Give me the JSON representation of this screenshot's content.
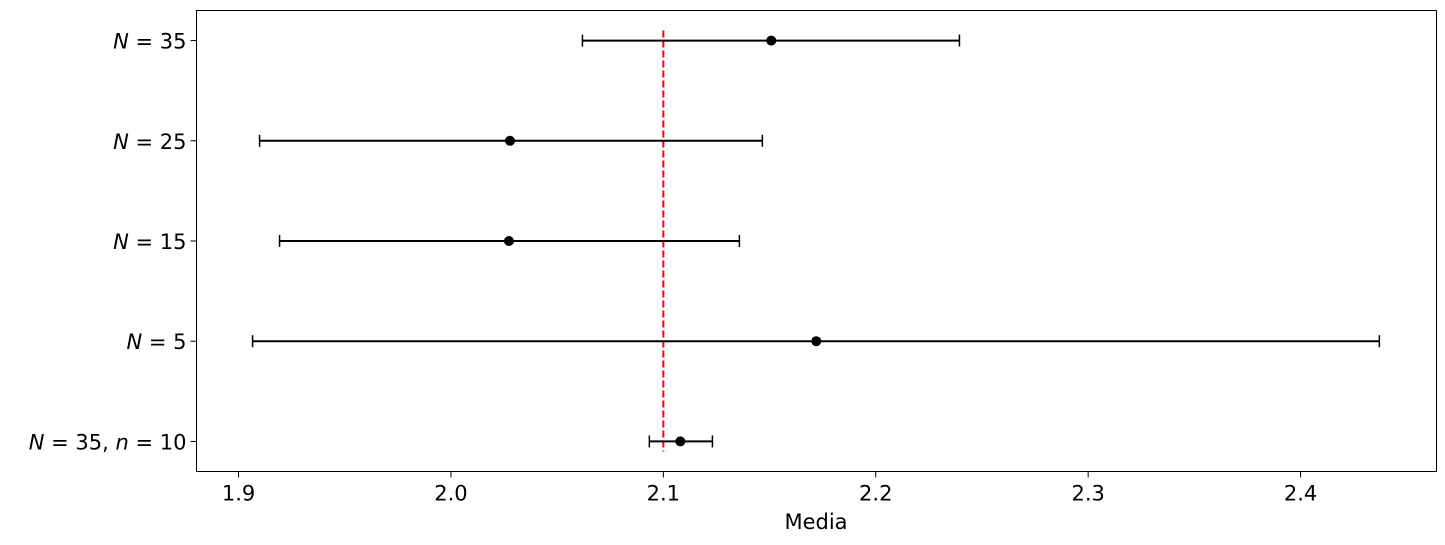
{
  "chart_data": {
    "type": "errorbar",
    "title": "",
    "xlabel": "Media",
    "ylabel": "",
    "xlim": [
      1.8802,
      2.464
    ],
    "ylim": [
      -0.3,
      4.3
    ],
    "xticks": [
      1.9,
      2.0,
      2.1,
      2.2,
      2.3,
      2.4
    ],
    "xtick_labels": [
      "1.9",
      "2.0",
      "2.1",
      "2.2",
      "2.3",
      "2.4"
    ],
    "categories": [
      "N = 35, n = 10",
      "N = 5",
      "N = 15",
      "N = 25",
      "N = 35"
    ],
    "points": [
      {
        "label": "N = 35, n = 10",
        "mean": 2.108,
        "low": 2.0934,
        "high": 2.1231
      },
      {
        "label": "N = 5",
        "mean": 2.172,
        "low": 1.9066,
        "high": 2.4371
      },
      {
        "label": "N = 15",
        "mean": 2.0273,
        "low": 1.9193,
        "high": 2.1358
      },
      {
        "label": "N = 25",
        "mean": 2.0278,
        "low": 1.9099,
        "high": 2.1466
      },
      {
        "label": "N = 35",
        "mean": 2.1508,
        "low": 2.0619,
        "high": 2.2394
      }
    ],
    "reference_line": {
      "x": 2.1,
      "style": "dashed",
      "color": "#ff0000"
    },
    "marker_color": "#000000",
    "grid": false,
    "legend": "none"
  }
}
